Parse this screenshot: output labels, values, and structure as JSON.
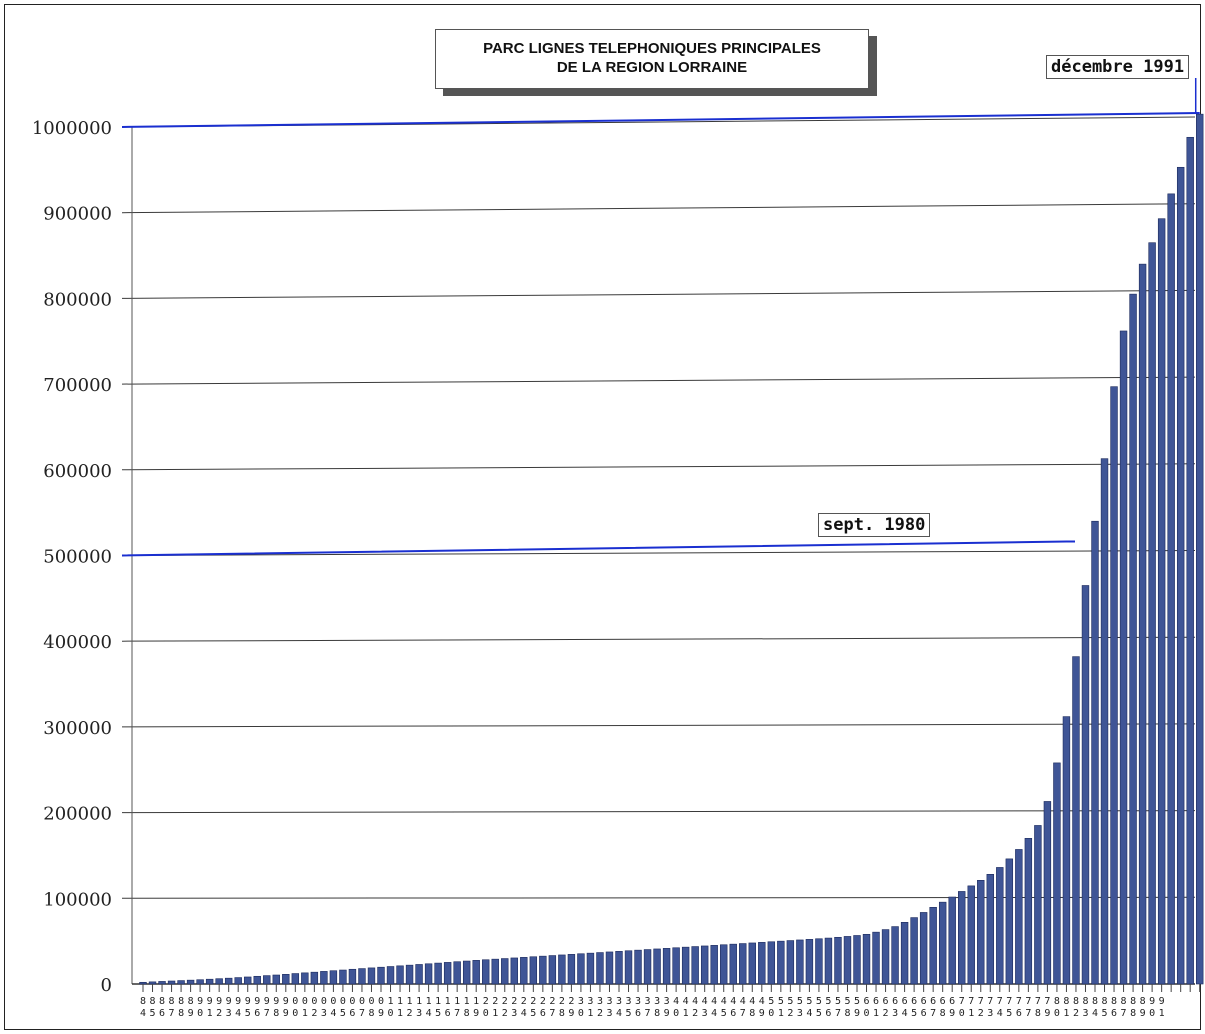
{
  "chart_data": {
    "type": "bar",
    "title": [
      "PARC LIGNES TELEPHONIQUES PRINCIPALES",
      "DE LA REGION LORRAINE"
    ],
    "xlabel": "",
    "ylabel": "",
    "ylim": [
      0,
      1000000
    ],
    "yticks": [
      0,
      100000,
      200000,
      300000,
      400000,
      500000,
      600000,
      700000,
      800000,
      900000,
      1000000
    ],
    "ytick_labels": [
      "0",
      "100000",
      "200000",
      "300000",
      "400000",
      "500000",
      "600000",
      "700000",
      "800000",
      "900000",
      "1000000"
    ],
    "grid": true,
    "bar_color": "#3f5596",
    "annotation_line_color": "#1a2fd0",
    "categories_top": [
      "8",
      "8",
      "8",
      "8",
      "8",
      "8",
      "9",
      "9",
      "9",
      "9",
      "9",
      "9",
      "9",
      "9",
      "9",
      "9",
      "0",
      "0",
      "0",
      "0",
      "0",
      "0",
      "0",
      "0",
      "0",
      "0",
      "1",
      "1",
      "1",
      "1",
      "1",
      "1",
      "1",
      "1",
      "1",
      "1",
      "2",
      "2",
      "2",
      "2",
      "2",
      "2",
      "2",
      "2",
      "2",
      "2",
      "3",
      "3",
      "3",
      "3",
      "3",
      "3",
      "3",
      "3",
      "3",
      "3",
      "4",
      "4",
      "4",
      "4",
      "4",
      "4",
      "4",
      "4",
      "4",
      "4",
      "5",
      "5",
      "5",
      "5",
      "5",
      "5",
      "5",
      "5",
      "5",
      "5",
      "6",
      "6",
      "6",
      "6",
      "6",
      "6",
      "6",
      "6",
      "6",
      "6",
      "7",
      "7",
      "7",
      "7",
      "7",
      "7",
      "7",
      "7",
      "7",
      "7",
      "8",
      "8",
      "8",
      "8",
      "8",
      "8",
      "8",
      "8",
      "8",
      "8",
      "9",
      "9"
    ],
    "categories_bottom": [
      "4",
      "5",
      "6",
      "7",
      "8",
      "9",
      "0",
      "1",
      "2",
      "3",
      "4",
      "5",
      "6",
      "7",
      "8",
      "9",
      "0",
      "1",
      "2",
      "3",
      "4",
      "5",
      "6",
      "7",
      "8",
      "9",
      "0",
      "1",
      "2",
      "3",
      "4",
      "5",
      "6",
      "7",
      "8",
      "9",
      "0",
      "1",
      "2",
      "3",
      "4",
      "5",
      "6",
      "7",
      "8",
      "9",
      "0",
      "1",
      "2",
      "3",
      "4",
      "5",
      "6",
      "7",
      "8",
      "9",
      "0",
      "1",
      "2",
      "3",
      "4",
      "5",
      "6",
      "7",
      "8",
      "9",
      "0",
      "1",
      "2",
      "3",
      "4",
      "5",
      "6",
      "7",
      "8",
      "9",
      "0",
      "1",
      "2",
      "3",
      "4",
      "5",
      "6",
      "7",
      "8",
      "9",
      "0",
      "1",
      "2",
      "3",
      "4",
      "5",
      "6",
      "7",
      "8",
      "9",
      "0",
      "1",
      "2",
      "3",
      "4",
      "5",
      "6",
      "7",
      "8",
      "9",
      "0",
      "1"
    ],
    "values": [
      2000,
      2500,
      3000,
      3500,
      4000,
      4500,
      5000,
      5600,
      6200,
      6800,
      7500,
      8200,
      9000,
      9800,
      10500,
      11300,
      12200,
      13000,
      13800,
      14700,
      15500,
      16300,
      17200,
      18000,
      18800,
      19600,
      20400,
      21200,
      22000,
      22800,
      23600,
      24400,
      25200,
      26000,
      26800,
      27600,
      28300,
      29000,
      29700,
      30400,
      31100,
      31800,
      32500,
      33200,
      33900,
      34600,
      35300,
      36000,
      36700,
      37400,
      38100,
      38800,
      39500,
      40200,
      40900,
      41600,
      42300,
      43000,
      43700,
      44400,
      45100,
      45800,
      46500,
      47200,
      47900,
      48600,
      49300,
      50000,
      50700,
      51400,
      52100,
      52800,
      53600,
      54500,
      55500,
      56600,
      58000,
      60500,
      63500,
      67000,
      72000,
      77500,
      83500,
      89500,
      95500,
      101500,
      108000,
      114500,
      121000,
      128000,
      136000,
      146000,
      157000,
      170000,
      185000,
      213000,
      258000,
      312000,
      382000,
      465000,
      540000,
      613000,
      697000,
      762000,
      805000,
      840000,
      865000,
      893000,
      922000,
      953000,
      988000,
      1015000
    ],
    "annotations": [
      {
        "label": "sept. 1980",
        "value": 500000,
        "category_index": 97
      },
      {
        "label": "décembre 1991",
        "value": 1000000,
        "category_index": 111
      }
    ]
  }
}
